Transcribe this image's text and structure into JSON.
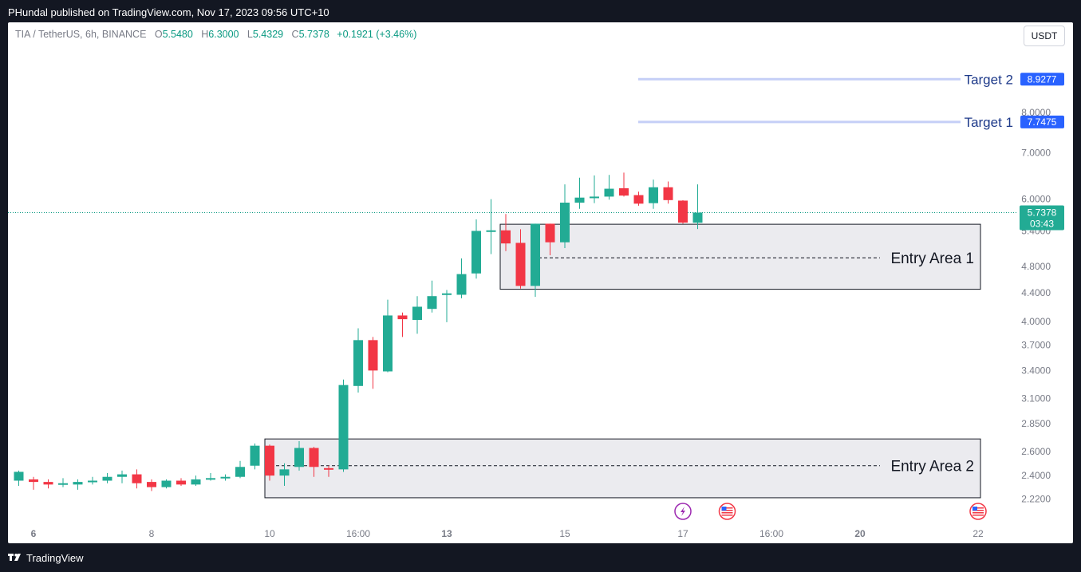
{
  "header": {
    "published_text": "PHundal published on TradingView.com, Nov 17, 2023 09:56 UTC+10"
  },
  "legend": {
    "symbol": "TIA / TetherUS, 6h, BINANCE",
    "o_label": "O",
    "o_value": "5.5480",
    "h_label": "H",
    "h_value": "6.3000",
    "l_label": "L",
    "l_value": "5.4329",
    "c_label": "C",
    "c_value": "5.7378",
    "change": "+0.1921 (+3.46%)"
  },
  "currency_button": "USDT",
  "footer": {
    "brand": "TradingView"
  },
  "colors": {
    "up": "#22ab94",
    "down": "#f23645",
    "target_line": "#c5cff7",
    "label_blue": "#2962ff",
    "zone_fill": "#ebebef",
    "price_line": "#089981"
  },
  "chart_data": {
    "type": "candlestick",
    "symbol": "TIA / TetherUS",
    "interval": "6h",
    "exchange": "BINANCE",
    "y_scale": "log",
    "ylim": [
      2.16,
      9.8
    ],
    "y_ticks": [
      "8.0000",
      "7.0000",
      "6.0000",
      "5.4000",
      "4.8000",
      "4.4000",
      "4.0000",
      "3.7000",
      "3.4000",
      "3.1000",
      "2.8500",
      "2.6000",
      "2.4000",
      "2.2200"
    ],
    "x_ticks": [
      {
        "label": "6",
        "index": 1,
        "bold": true
      },
      {
        "label": "8",
        "index": 9,
        "bold": false
      },
      {
        "label": "10",
        "index": 17,
        "bold": false
      },
      {
        "label": "16:00",
        "index": 23,
        "bold": false
      },
      {
        "label": "13",
        "index": 29,
        "bold": true
      },
      {
        "label": "15",
        "index": 37,
        "bold": false
      },
      {
        "label": "17",
        "index": 45,
        "bold": false
      },
      {
        "label": "16:00",
        "index": 51,
        "bold": false
      },
      {
        "label": "20",
        "index": 57,
        "bold": true
      },
      {
        "label": "22",
        "index": 65,
        "bold": false
      }
    ],
    "candles": [
      {
        "o": 2.36,
        "h": 2.44,
        "l": 2.32,
        "c": 2.43
      },
      {
        "o": 2.37,
        "h": 2.39,
        "l": 2.29,
        "c": 2.35
      },
      {
        "o": 2.35,
        "h": 2.37,
        "l": 2.3,
        "c": 2.33
      },
      {
        "o": 2.34,
        "h": 2.38,
        "l": 2.31,
        "c": 2.34
      },
      {
        "o": 2.33,
        "h": 2.37,
        "l": 2.29,
        "c": 2.35
      },
      {
        "o": 2.35,
        "h": 2.39,
        "l": 2.33,
        "c": 2.36
      },
      {
        "o": 2.36,
        "h": 2.42,
        "l": 2.34,
        "c": 2.39
      },
      {
        "o": 2.39,
        "h": 2.44,
        "l": 2.34,
        "c": 2.41
      },
      {
        "o": 2.41,
        "h": 2.45,
        "l": 2.3,
        "c": 2.34
      },
      {
        "o": 2.35,
        "h": 2.37,
        "l": 2.28,
        "c": 2.31
      },
      {
        "o": 2.31,
        "h": 2.37,
        "l": 2.3,
        "c": 2.36
      },
      {
        "o": 2.36,
        "h": 2.38,
        "l": 2.32,
        "c": 2.33
      },
      {
        "o": 2.33,
        "h": 2.4,
        "l": 2.32,
        "c": 2.37
      },
      {
        "o": 2.37,
        "h": 2.42,
        "l": 2.36,
        "c": 2.38
      },
      {
        "o": 2.38,
        "h": 2.41,
        "l": 2.36,
        "c": 2.39
      },
      {
        "o": 2.39,
        "h": 2.52,
        "l": 2.38,
        "c": 2.47
      },
      {
        "o": 2.48,
        "h": 2.67,
        "l": 2.45,
        "c": 2.65
      },
      {
        "o": 2.65,
        "h": 2.66,
        "l": 2.36,
        "c": 2.4
      },
      {
        "o": 2.4,
        "h": 2.5,
        "l": 2.32,
        "c": 2.45
      },
      {
        "o": 2.47,
        "h": 2.69,
        "l": 2.44,
        "c": 2.63
      },
      {
        "o": 2.63,
        "h": 2.64,
        "l": 2.39,
        "c": 2.47
      },
      {
        "o": 2.46,
        "h": 2.48,
        "l": 2.39,
        "c": 2.45
      },
      {
        "o": 2.45,
        "h": 3.3,
        "l": 2.43,
        "c": 3.24
      },
      {
        "o": 3.23,
        "h": 3.91,
        "l": 3.16,
        "c": 3.76
      },
      {
        "o": 3.76,
        "h": 3.8,
        "l": 3.2,
        "c": 3.4
      },
      {
        "o": 3.39,
        "h": 4.3,
        "l": 3.38,
        "c": 4.08
      },
      {
        "o": 4.08,
        "h": 4.12,
        "l": 3.8,
        "c": 4.03
      },
      {
        "o": 4.02,
        "h": 4.35,
        "l": 3.84,
        "c": 4.2
      },
      {
        "o": 4.17,
        "h": 4.58,
        "l": 4.12,
        "c": 4.35
      },
      {
        "o": 4.37,
        "h": 4.44,
        "l": 3.99,
        "c": 4.39
      },
      {
        "o": 4.37,
        "h": 4.93,
        "l": 4.32,
        "c": 4.68
      },
      {
        "o": 4.69,
        "h": 5.61,
        "l": 4.61,
        "c": 5.4
      },
      {
        "o": 5.4,
        "h": 6.0,
        "l": 5.0,
        "c": 5.41
      },
      {
        "o": 5.41,
        "h": 5.71,
        "l": 5.05,
        "c": 5.18
      },
      {
        "o": 5.19,
        "h": 5.43,
        "l": 4.46,
        "c": 4.5
      },
      {
        "o": 4.5,
        "h": 5.53,
        "l": 4.34,
        "c": 5.53
      },
      {
        "o": 5.53,
        "h": 5.53,
        "l": 4.98,
        "c": 5.2
      },
      {
        "o": 5.2,
        "h": 6.3,
        "l": 5.1,
        "c": 5.93
      },
      {
        "o": 5.93,
        "h": 6.44,
        "l": 5.81,
        "c": 6.03
      },
      {
        "o": 6.03,
        "h": 6.49,
        "l": 5.92,
        "c": 6.05
      },
      {
        "o": 6.05,
        "h": 6.5,
        "l": 5.99,
        "c": 6.21
      },
      {
        "o": 6.22,
        "h": 6.55,
        "l": 6.05,
        "c": 6.07
      },
      {
        "o": 6.08,
        "h": 6.15,
        "l": 5.87,
        "c": 5.91
      },
      {
        "o": 5.92,
        "h": 6.4,
        "l": 5.81,
        "c": 6.24
      },
      {
        "o": 6.24,
        "h": 6.36,
        "l": 5.91,
        "c": 5.98
      },
      {
        "o": 5.97,
        "h": 5.98,
        "l": 5.53,
        "c": 5.55
      },
      {
        "o": 5.548,
        "h": 6.3,
        "l": 5.4329,
        "c": 5.7378
      }
    ],
    "annotations": [
      {
        "type": "horizontal_target",
        "label": "Target 1",
        "price_label": "7.7475",
        "value": 7.7475
      },
      {
        "type": "horizontal_target",
        "label": "Target 2",
        "price_label": "8.9277",
        "value": 8.9277
      },
      {
        "type": "zone",
        "label": "Entry Area 1",
        "top": 5.52,
        "bottom": 4.45,
        "mid": 4.94
      },
      {
        "type": "zone",
        "label": "Entry Area 2",
        "top": 2.71,
        "bottom": 2.23,
        "mid": 2.48
      }
    ],
    "current_price": {
      "value": 5.7378,
      "label": "5.7378",
      "countdown": "03:43"
    },
    "event_markers": [
      {
        "type": "lightning",
        "index": 45
      },
      {
        "type": "us_flag",
        "index": 48
      },
      {
        "type": "us_flag",
        "index": 65
      }
    ]
  }
}
